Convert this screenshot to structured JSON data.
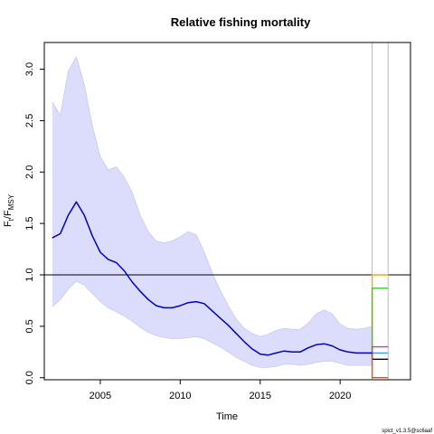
{
  "chart_data": {
    "type": "line",
    "title": "Relative fishing mortality",
    "xlabel": "Time",
    "ylabel": {
      "main": "F",
      "sub1": "t",
      "sep": "/F",
      "sub2": "MSY"
    },
    "footnote": "spict_v1.3.5@sc6aaf",
    "xlim": [
      2001.5,
      2024.4
    ],
    "ylim": [
      -0.02,
      3.26
    ],
    "x_ticks": [
      2005,
      2010,
      2015,
      2020
    ],
    "x_tick_labels": [
      "2005",
      "2010",
      "2015",
      "2020"
    ],
    "y_ticks": [
      0.0,
      0.5,
      1.0,
      1.5,
      2.0,
      2.5,
      3.0
    ],
    "y_tick_labels": [
      "0.0",
      "0.5",
      "1.0",
      "1.5",
      "2.0",
      "2.5",
      "3.0"
    ],
    "reference_line": {
      "y": 1.0,
      "color": "#000000"
    },
    "vertical_lines": [
      {
        "x": 2022.0,
        "color": "#bbbbbb"
      },
      {
        "x": 2023.0,
        "color": "#bbbbbb"
      }
    ],
    "ci_band": {
      "color": "#dcdcfc",
      "edge_color": "#c8c8f5",
      "x": [
        2002.0,
        2002.5,
        2003.0,
        2003.5,
        2004.0,
        2004.5,
        2005.0,
        2005.5,
        2006.0,
        2006.5,
        2007.0,
        2007.5,
        2008.0,
        2008.5,
        2009.0,
        2009.5,
        2010.0,
        2010.5,
        2011.0,
        2011.5,
        2012.0,
        2012.5,
        2013.0,
        2013.5,
        2014.0,
        2014.5,
        2015.0,
        2015.5,
        2016.0,
        2016.5,
        2017.0,
        2017.5,
        2018.0,
        2018.5,
        2019.0,
        2019.5,
        2020.0,
        2020.5,
        2021.0,
        2021.5,
        2022.0
      ],
      "upper": [
        2.68,
        2.55,
        2.98,
        3.12,
        2.85,
        2.45,
        2.15,
        2.02,
        2.05,
        1.95,
        1.8,
        1.58,
        1.42,
        1.33,
        1.31,
        1.33,
        1.37,
        1.42,
        1.39,
        1.22,
        1.02,
        0.85,
        0.7,
        0.57,
        0.48,
        0.43,
        0.4,
        0.42,
        0.46,
        0.48,
        0.47,
        0.47,
        0.53,
        0.62,
        0.66,
        0.62,
        0.52,
        0.48,
        0.47,
        0.48,
        0.5
      ],
      "lower": [
        0.69,
        0.76,
        0.86,
        0.94,
        0.9,
        0.82,
        0.74,
        0.68,
        0.64,
        0.6,
        0.55,
        0.49,
        0.44,
        0.41,
        0.39,
        0.38,
        0.38,
        0.39,
        0.4,
        0.38,
        0.34,
        0.3,
        0.25,
        0.2,
        0.16,
        0.12,
        0.1,
        0.1,
        0.11,
        0.13,
        0.13,
        0.12,
        0.13,
        0.15,
        0.16,
        0.16,
        0.14,
        0.12,
        0.12,
        0.12,
        0.12
      ]
    },
    "series": [
      {
        "color": "#0000cc",
        "x": [
          2002.0,
          2002.5,
          2003.0,
          2003.5,
          2004.0,
          2004.5,
          2005.0,
          2005.5,
          2006.0,
          2006.5,
          2007.0,
          2007.5,
          2008.0,
          2008.5,
          2009.0,
          2009.5,
          2010.0,
          2010.5,
          2011.0,
          2011.5,
          2012.0,
          2012.5,
          2013.0,
          2013.5,
          2014.0,
          2014.5,
          2015.0,
          2015.5,
          2016.0,
          2016.5,
          2017.0,
          2017.5,
          2018.0,
          2018.5,
          2019.0,
          2019.5,
          2020.0,
          2020.5,
          2021.0,
          2021.5,
          2022.0
        ],
        "y": [
          1.36,
          1.4,
          1.58,
          1.71,
          1.58,
          1.38,
          1.22,
          1.15,
          1.12,
          1.04,
          0.93,
          0.84,
          0.76,
          0.7,
          0.68,
          0.68,
          0.7,
          0.73,
          0.74,
          0.72,
          0.65,
          0.58,
          0.51,
          0.43,
          0.35,
          0.28,
          0.23,
          0.22,
          0.24,
          0.26,
          0.25,
          0.25,
          0.29,
          0.32,
          0.33,
          0.31,
          0.27,
          0.25,
          0.24,
          0.24,
          0.24
        ]
      }
    ],
    "scenarios": [
      {
        "color": "#ffa500",
        "y": 1.0
      },
      {
        "color": "#33cc33",
        "y": 0.87
      },
      {
        "color": "#cc33cc",
        "y": 0.3
      },
      {
        "color": "#2f9ef0",
        "y": 0.24
      },
      {
        "color": "#000000",
        "y": 0.18
      },
      {
        "color": "#ff4500",
        "y": 0.0
      }
    ]
  }
}
